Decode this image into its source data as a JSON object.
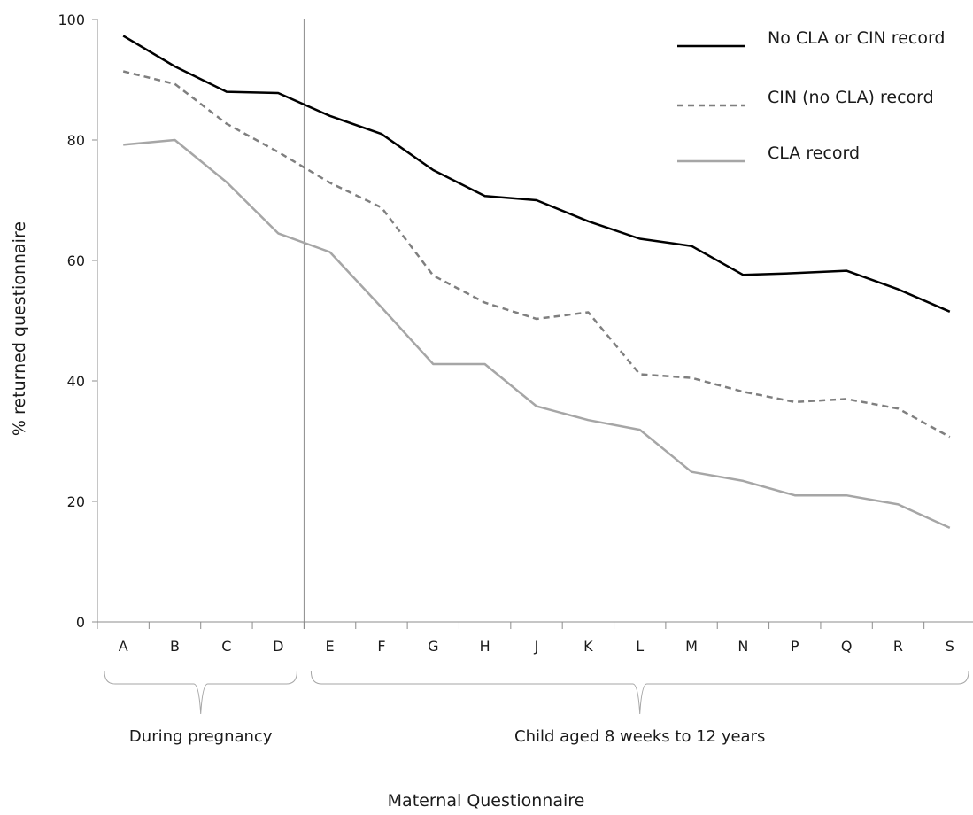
{
  "chart_data": {
    "type": "line",
    "title": "",
    "xlabel": "Maternal Questionnaire",
    "ylabel": "% returned questionnaire",
    "ylim": [
      0,
      100
    ],
    "yticks": [
      0,
      20,
      40,
      60,
      80,
      100
    ],
    "categories": [
      "A",
      "B",
      "C",
      "D",
      "E",
      "F",
      "G",
      "H",
      "J",
      "K",
      "L",
      "M",
      "N",
      "P",
      "Q",
      "R",
      "S"
    ],
    "series": [
      {
        "name": "No CLA or CIN record",
        "color": "#000000",
        "dash": "solid",
        "values": [
          97.3,
          92.2,
          88.0,
          87.8,
          84.0,
          81.0,
          75.0,
          70.7,
          70.0,
          66.5,
          63.6,
          62.4,
          57.6,
          57.9,
          58.3,
          55.2,
          51.5
        ]
      },
      {
        "name": "CIN (no CLA) record",
        "color": "#7f7f7f",
        "dash": "dashed",
        "values": [
          91.4,
          89.3,
          82.7,
          78.0,
          72.9,
          68.8,
          57.5,
          53.0,
          50.3,
          51.4,
          41.1,
          40.5,
          38.2,
          36.5,
          37.0,
          35.4,
          30.7
        ]
      },
      {
        "name": "CLA record",
        "color": "#a6a6a6",
        "dash": "solid",
        "values": [
          79.2,
          80.0,
          73.0,
          64.5,
          61.4,
          52.2,
          42.8,
          42.8,
          35.8,
          33.5,
          31.9,
          24.9,
          23.4,
          21.0,
          21.0,
          19.5,
          15.6
        ]
      }
    ],
    "divider_after_category": "D",
    "groups": [
      {
        "label": "During pregnancy",
        "from": "A",
        "to": "D"
      },
      {
        "label": "Child aged 8 weeks to 12 years",
        "from": "E",
        "to": "S"
      }
    ],
    "legend": {
      "position": "top-right"
    },
    "grid": false
  }
}
